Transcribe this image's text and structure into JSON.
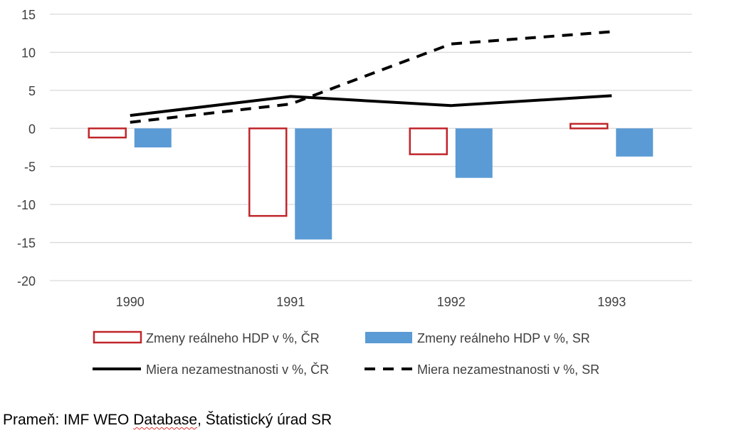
{
  "chart_data": {
    "type": "bar",
    "categories": [
      "1990",
      "1991",
      "1992",
      "1993"
    ],
    "ylim": [
      -20,
      15
    ],
    "yticks": [
      15,
      10,
      5,
      0,
      -5,
      -10,
      -15,
      -20
    ],
    "grid": true,
    "legend_position": "bottom",
    "bar_series": [
      {
        "name": "Zmeny reálneho HDP v %, ČR",
        "values": [
          -1.2,
          -11.5,
          -3.4,
          0.6
        ],
        "style": "outline",
        "color": "#c0262b"
      },
      {
        "name": "Zmeny reálneho HDP v %, SR",
        "values": [
          -2.5,
          -14.6,
          -6.5,
          -3.7
        ],
        "style": "filled",
        "color": "#5b9bd5"
      }
    ],
    "line_series": [
      {
        "name": "Miera nezamestnanosti v %, ČR",
        "values": [
          1.7,
          4.2,
          3.0,
          4.3
        ],
        "style": "solid",
        "color": "#000000"
      },
      {
        "name": "Miera nezamestnanosti v %, SR",
        "values": [
          0.8,
          3.2,
          11.1,
          12.7
        ],
        "style": "dashed",
        "color": "#000000"
      }
    ]
  },
  "source": {
    "prefix": "Prameň: IMF WEO ",
    "misspelled": "Database",
    "suffix": ", Štatistický úrad SR"
  }
}
